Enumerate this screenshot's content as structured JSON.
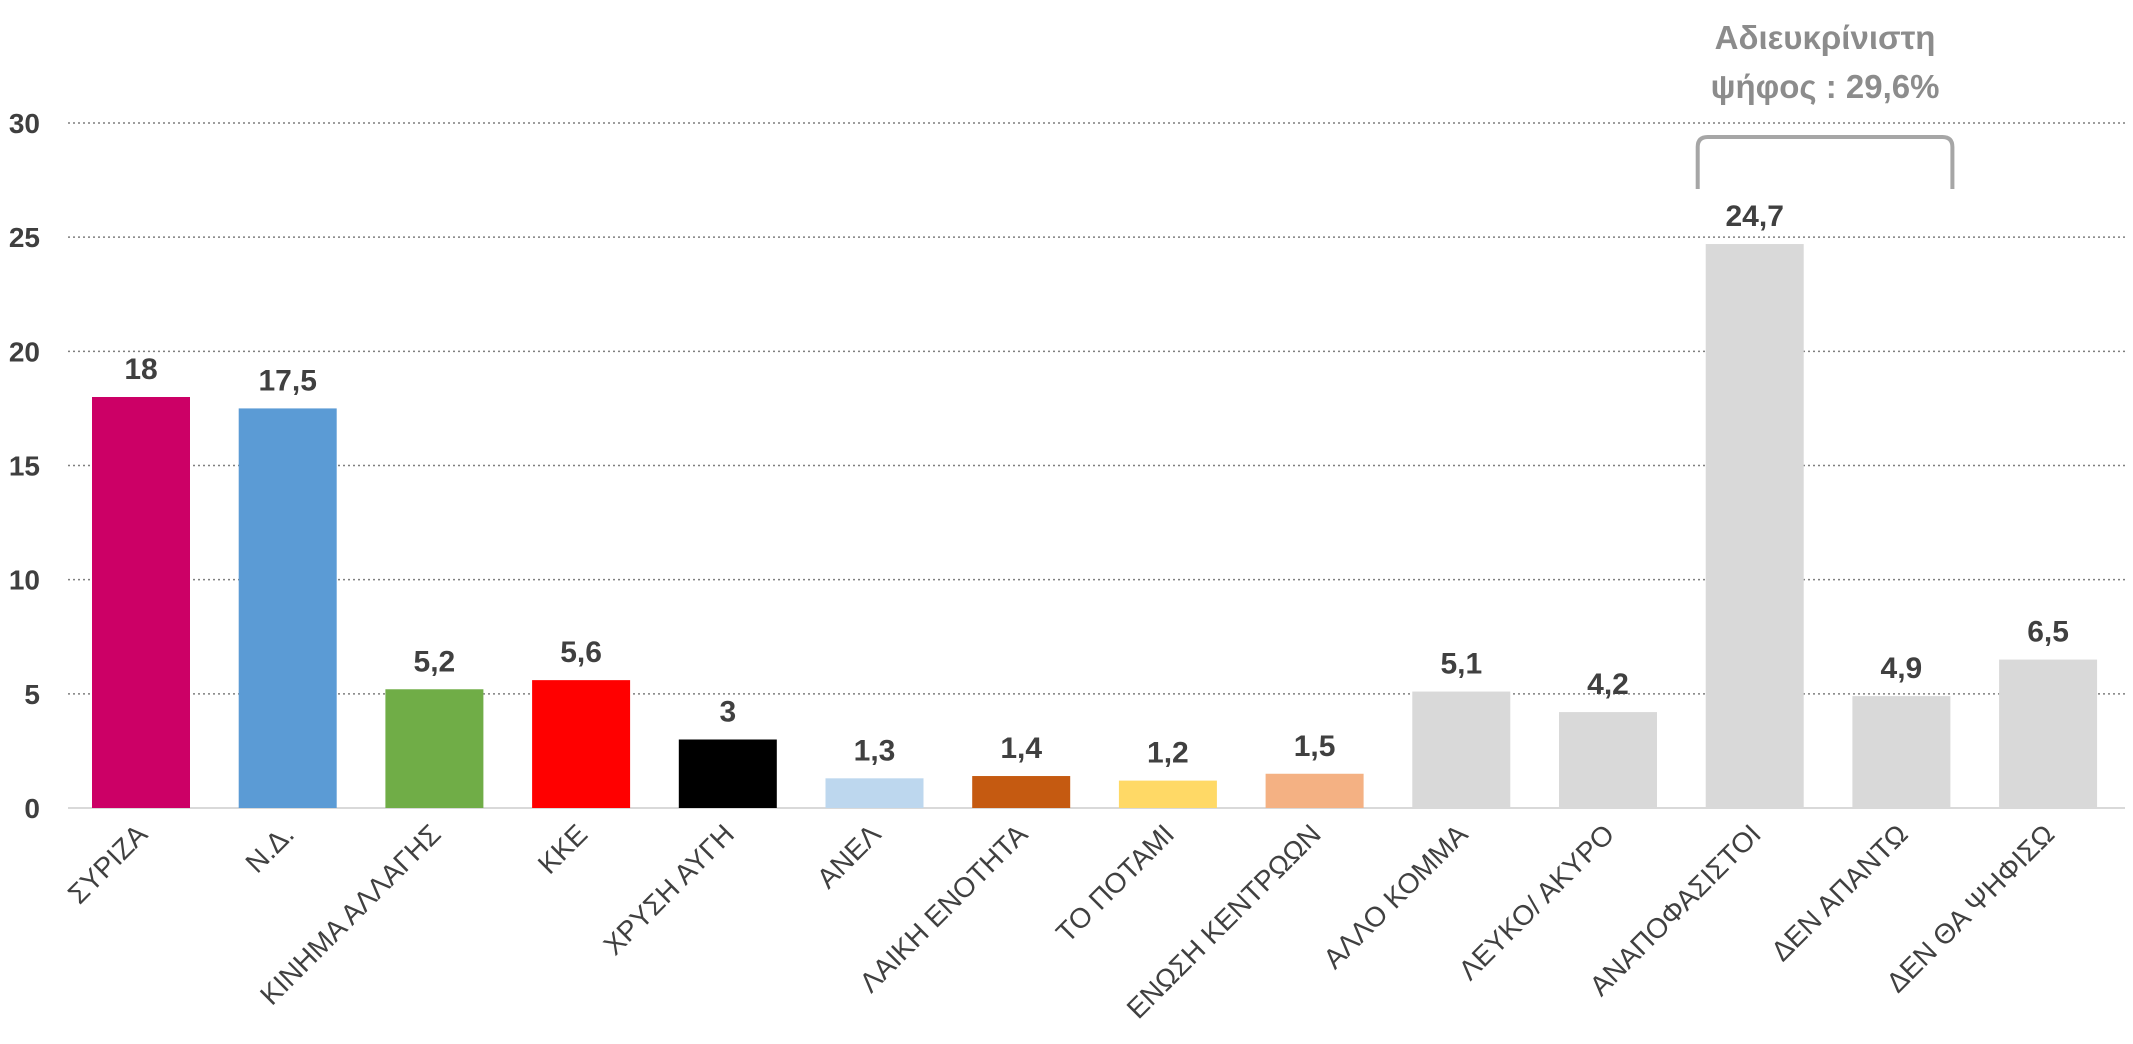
{
  "chart_data": {
    "type": "bar",
    "categories": [
      "ΣΥΡΙΖΑ",
      "Ν.Δ.",
      "ΚΙΝΗΜΑ ΑΛΛΑΓΗΣ",
      "ΚΚΕ",
      "ΧΡΥΣΗ ΑΥΓΗ",
      "ΑΝΕΛ",
      "ΛΑΙΚΗ ΕΝΟΤΗΤΑ",
      "ΤΟ ΠΟΤΑΜΙ",
      "ΕΝΩΣΗ ΚΕΝΤΡΩΩΝ",
      "ΑΛΛΟ ΚΟΜΜΑ",
      "ΛΕΥΚΟ/ ΑΚΥΡΟ",
      "ΑΝΑΠΟΦΑΣΙΣΤΟΙ",
      "ΔΕΝ ΑΠΑΝΤΩ",
      "ΔΕΝ ΘΑ ΨΗΦΙΣΩ"
    ],
    "values": [
      18,
      17.5,
      5.2,
      5.6,
      3,
      1.3,
      1.4,
      1.2,
      1.5,
      5.1,
      4.2,
      24.7,
      4.9,
      6.5
    ],
    "value_labels": [
      "18",
      "17,5",
      "5,2",
      "5,6",
      "3",
      "1,3",
      "1,4",
      "1,2",
      "1,5",
      "5,1",
      "4,2",
      "24,7",
      "4,9",
      "6,5"
    ],
    "colors": [
      "#cc0066",
      "#5b9bd5",
      "#70ad47",
      "#ff0000",
      "#000000",
      "#bdd7ee",
      "#c55a11",
      "#ffd966",
      "#f4b183",
      "#d9d9d9",
      "#d9d9d9",
      "#d9d9d9",
      "#d9d9d9",
      "#d9d9d9"
    ],
    "title": "",
    "xlabel": "",
    "ylabel": "",
    "ylim": [
      0,
      30
    ],
    "yticks": [
      0,
      5,
      10,
      15,
      20,
      25,
      30
    ],
    "grid": "dotted horizontal",
    "legend": "none",
    "annotation": {
      "lines": [
        "Αδιευκρίνιστη",
        "ψήφος : 29,6%"
      ],
      "spans_categories": [
        "ΑΝΑΠΟΦΑΣΙΣΤΟΙ",
        "ΔΕΝ ΑΠΑΝΤΩ"
      ],
      "color": "#a6a6a6"
    }
  }
}
